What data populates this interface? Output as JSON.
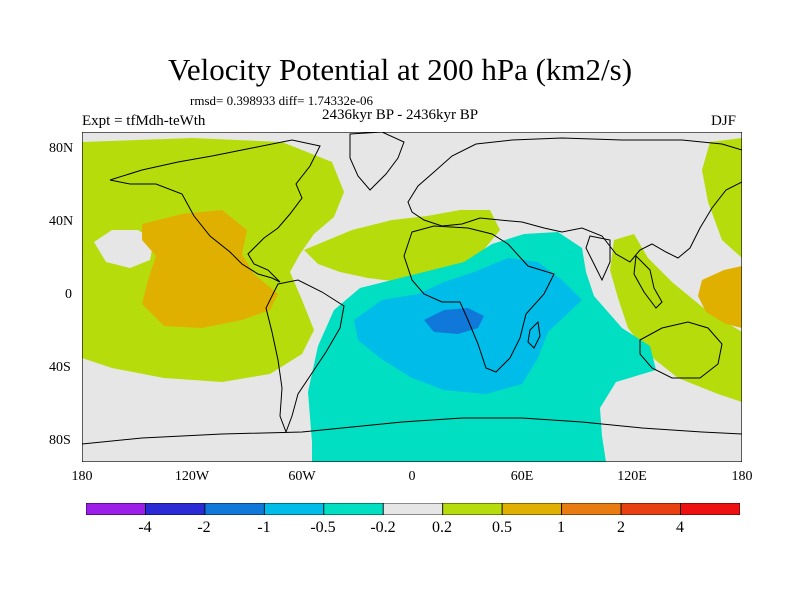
{
  "title": "Velocity Potential at 200 hPa (km2/s)",
  "stats": "rmsd= 0.398933 diff= 1.74332e-06",
  "period": "2436kyr BP - 2436kyr BP",
  "experiment": "Expt = tfMdh-teWth",
  "season": "DJF",
  "lat_labels": [
    "80N",
    "40N",
    "0",
    "40S",
    "80S"
  ],
  "lon_labels": [
    "180",
    "120W",
    "60W",
    "0",
    "60E",
    "120E",
    "180"
  ],
  "colorbar": {
    "colors": [
      "#9b1fe8",
      "#2b2bd6",
      "#0f78d8",
      "#00bce8",
      "#00dfc2",
      "#e6e6e6",
      "#b6dc0c",
      "#e0b000",
      "#e87c10",
      "#e84010",
      "#ee1010"
    ],
    "labels": [
      "-4",
      "-2",
      "-1",
      "-0.5",
      "-0.2",
      "0.2",
      "0.5",
      "1",
      "2",
      "4"
    ]
  }
}
